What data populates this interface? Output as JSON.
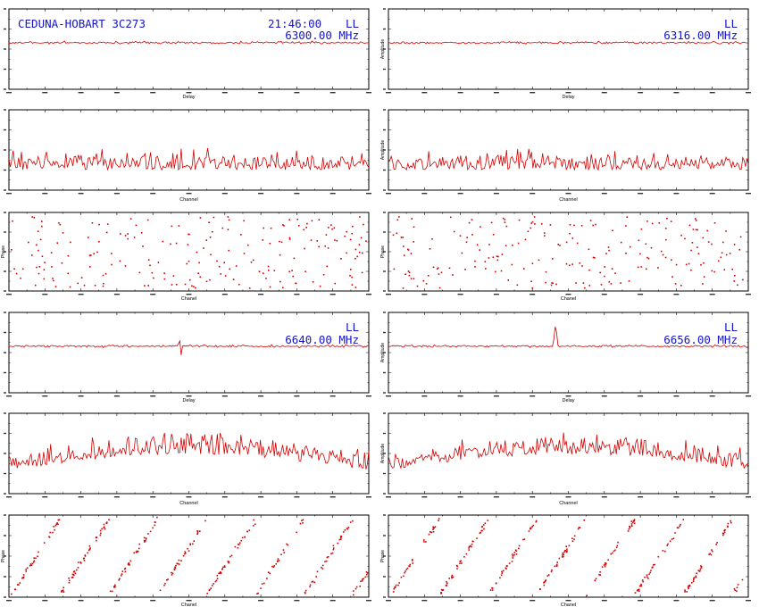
{
  "header": {
    "baseline_source": "CEDUNA-HOBART 3C273",
    "time": "21:46:00",
    "polarisation": "LL"
  },
  "colors": {
    "trace": "#d40000",
    "label": "#1515c8",
    "frame": "#000000"
  },
  "panels": [
    {
      "id": "if1",
      "freq_label": "6300.00 MHz",
      "pol_label": "LL",
      "delay_ylabel": "",
      "amp_ylabel": "",
      "phase_ylabel": "Phase",
      "delay_peak": null
    },
    {
      "id": "if2",
      "freq_label": "6316.00 MHz",
      "pol_label": "LL",
      "delay_ylabel": "Amplitude",
      "amp_ylabel": "Amplitude",
      "phase_ylabel": "Phase",
      "delay_peak": null
    },
    {
      "id": "if3",
      "freq_label": "6640.00 MHz",
      "pol_label": "LL",
      "delay_ylabel": "",
      "amp_ylabel": "",
      "phase_ylabel": "Phase",
      "delay_peak": {
        "position": -0.02,
        "type": "dip"
      }
    },
    {
      "id": "if4",
      "freq_label": "6656.00 MHz",
      "pol_label": "LL",
      "delay_ylabel": "Amplitude",
      "amp_ylabel": "Amplitude",
      "phase_ylabel": "Phase",
      "delay_peak": {
        "position": -0.01,
        "type": "spike"
      }
    }
  ],
  "axis_labels": {
    "delay": "Delay",
    "channel": "Channel",
    "phase_x": "Chanel"
  },
  "chart_data": {
    "type": "line",
    "title": "CEDUNA-HOBART 3C273",
    "subplots_per_if": [
      "delay-amplitude",
      "channel-amplitude",
      "channel-phase"
    ],
    "series": [
      {
        "name": "6300.00 MHz",
        "delay_feature": "none",
        "amplitude_profile": "flat-noisy",
        "phase_pattern": "random"
      },
      {
        "name": "6316.00 MHz",
        "delay_feature": "none",
        "amplitude_profile": "flat-noisy",
        "phase_pattern": "random"
      },
      {
        "name": "6640.00 MHz",
        "delay_feature": "dip",
        "amplitude_profile": "arched-noisy",
        "phase_pattern": "wrapping-ramp"
      },
      {
        "name": "6656.00 MHz",
        "delay_feature": "spike",
        "amplitude_profile": "arched-noisy",
        "phase_pattern": "wrapping-ramp"
      }
    ],
    "grid": false
  }
}
